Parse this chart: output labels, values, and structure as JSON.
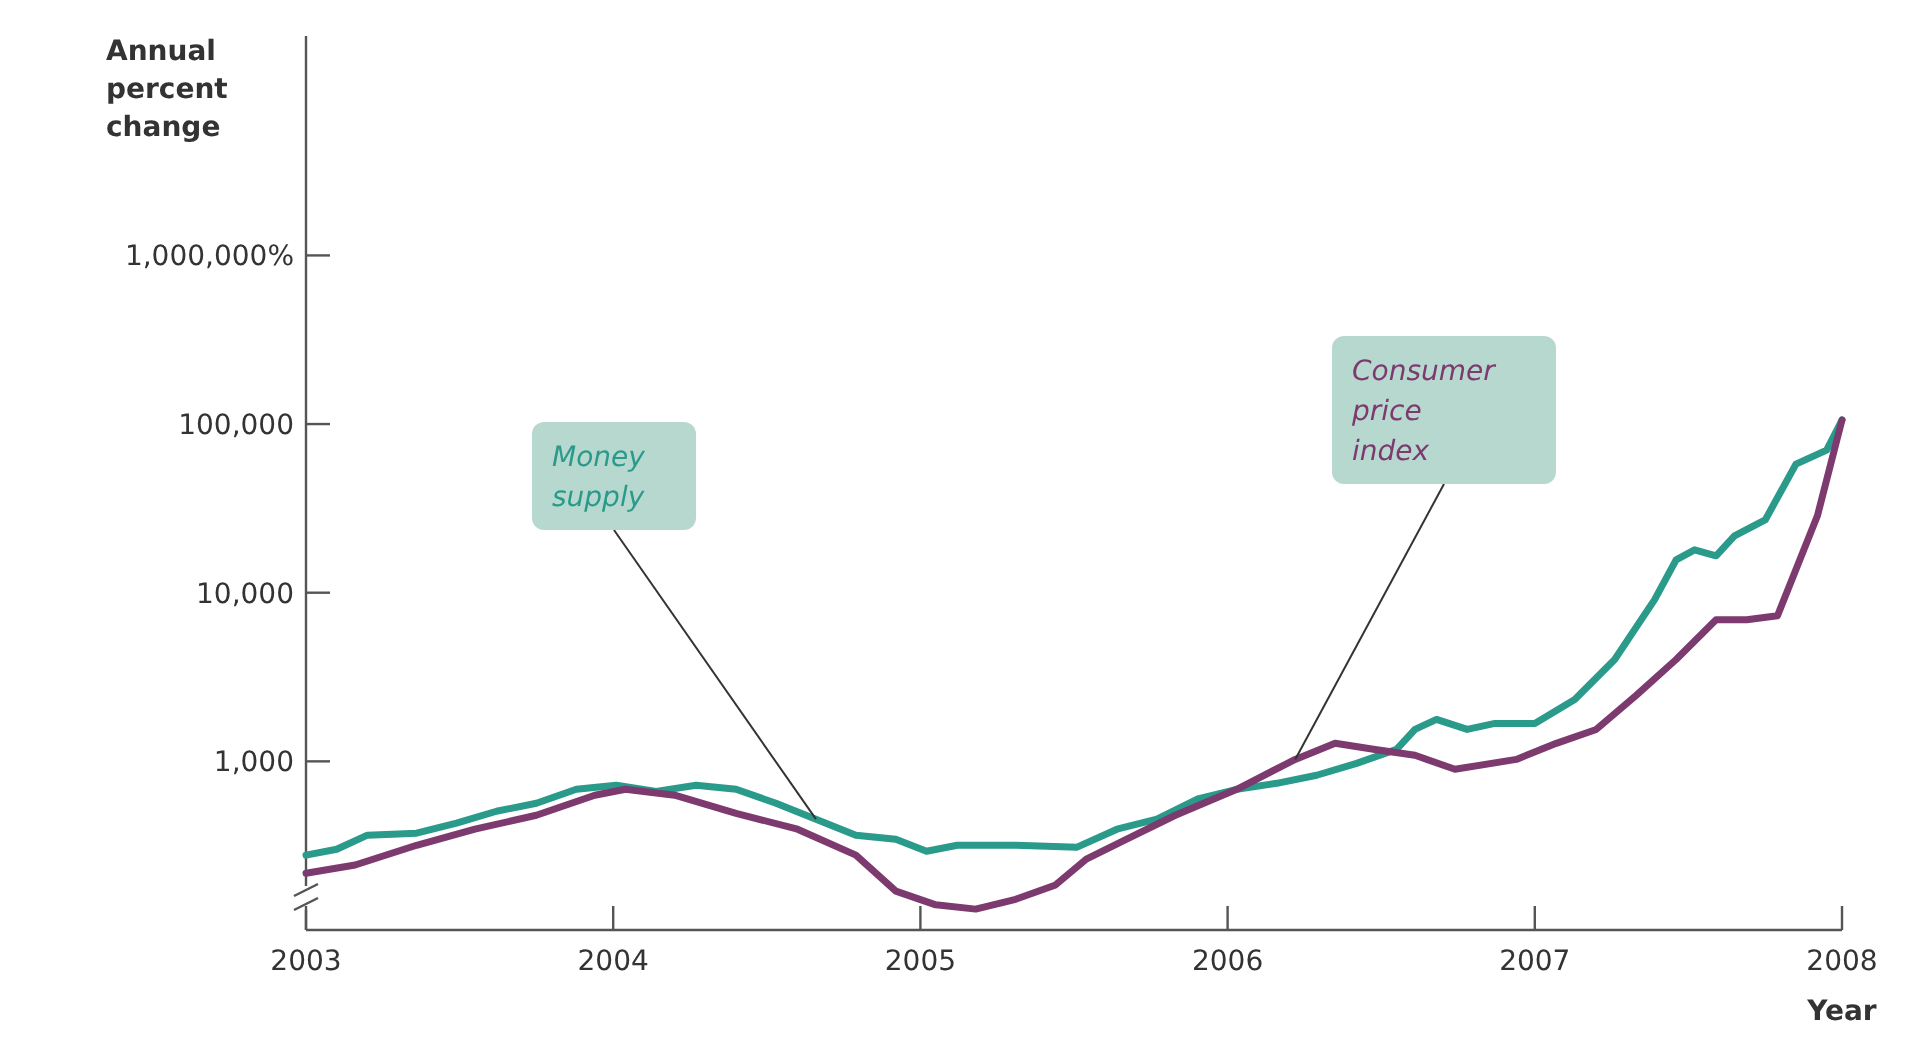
{
  "chart_data": {
    "type": "line",
    "ylabel": "Annual percent change",
    "xlabel": "Year",
    "log": "y",
    "grid": false,
    "line_style": "solid",
    "marker": "none",
    "xlim": [
      2003,
      2008
    ],
    "xticks": [
      2003,
      2004,
      2005,
      2006,
      2007,
      2008
    ],
    "ylim": [
      100,
      20000000
    ],
    "yticks": [
      {
        "value": 1000,
        "label": "1,000"
      },
      {
        "value": 10000,
        "label": "10,000"
      },
      {
        "value": 100000,
        "label": "100,000"
      },
      {
        "value": 1000000,
        "label": "1,000,000%"
      }
    ],
    "series": [
      {
        "name": "Money supply",
        "color": "#2a9a8a",
        "x": [
          2003,
          2003.1,
          2003.2,
          2003.36,
          2003.49,
          2003.62,
          2003.75,
          2003.88,
          2004.01,
          2004.14,
          2004.27,
          2004.4,
          2004.53,
          2004.66,
          2004.79,
          2004.92,
          2005.02,
          2005.12,
          2005.31,
          2005.51,
          2005.64,
          2005.77,
          2005.9,
          2006.03,
          2006.16,
          2006.29,
          2006.42,
          2006.55,
          2006.61,
          2006.68,
          2006.78,
          2006.87,
          2007,
          2007.13,
          2007.26,
          2007.39,
          2007.46,
          2007.52,
          2007.59,
          2007.65,
          2007.75,
          2007.85,
          2007.95,
          2008
        ],
        "values": [
          278,
          301,
          365,
          375,
          430,
          506,
          564,
          683,
          721,
          664,
          721,
          683,
          564,
          454,
          365,
          345,
          293,
          318,
          318,
          310,
          396,
          454,
          596,
          683,
          741,
          827,
          973,
          1177,
          1546,
          1773,
          1546,
          1678,
          1678,
          2327,
          4017,
          9100,
          15670,
          17950,
          16550,
          21730,
          27000,
          57900,
          70100,
          105700
        ]
      },
      {
        "name": "Consumer price index",
        "color": "#7d3a6e",
        "x": [
          2003,
          2003.16,
          2003.36,
          2003.55,
          2003.75,
          2003.94,
          2004.04,
          2004.2,
          2004.4,
          2004.6,
          2004.79,
          2004.92,
          2005.05,
          2005.18,
          2005.31,
          2005.44,
          2005.54,
          2005.67,
          2005.83,
          2006.03,
          2006.22,
          2006.35,
          2006.48,
          2006.61,
          2006.74,
          2006.94,
          2007.07,
          2007.2,
          2007.33,
          2007.46,
          2007.59,
          2007.69,
          2007.79,
          2007.92,
          2008
        ],
        "values": [
          217,
          243,
          318,
          396,
          479,
          630,
          683,
          630,
          492,
          396,
          278,
          170,
          141,
          133,
          152,
          185,
          263,
          345,
          479,
          683,
          1027,
          1279,
          1177,
          1086,
          897,
          1027,
          1279,
          1546,
          2460,
          4017,
          6920,
          6920,
          7300,
          28570,
          105700
        ]
      }
    ]
  }
}
